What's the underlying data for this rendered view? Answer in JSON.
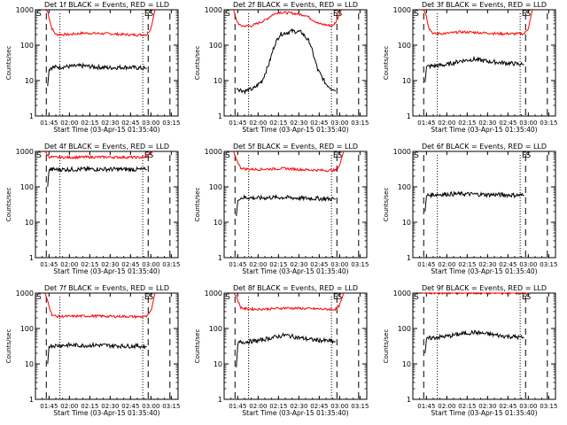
{
  "chart_data": [
    {
      "type": "line",
      "title": "Det 1f BLACK = Events, RED = LLD",
      "xlabel": "Start Time (03-Apr-15 01:35:40)",
      "ylabel": "Counts/sec",
      "log_y": true,
      "ylim": [
        1,
        1000
      ],
      "xlim": [
        "01:35",
        "03:20"
      ],
      "xticks": [
        "01:45",
        "02:00",
        "02:15",
        "02:30",
        "02:45",
        "03:00",
        "03:15"
      ],
      "yticks": [
        "1",
        "10",
        "100",
        "1000"
      ],
      "markers": [
        "E",
        "S"
      ],
      "series": [
        {
          "name": "LLD",
          "color": "#ff0000",
          "x": [
            "01:42",
            "01:44",
            "01:47",
            "01:50",
            "02:00",
            "02:10",
            "02:20",
            "02:30",
            "02:40",
            "02:50",
            "02:57",
            "03:00",
            "03:03"
          ],
          "values": [
            1000,
            900,
            300,
            200,
            200,
            220,
            215,
            210,
            200,
            195,
            200,
            300,
            1000
          ]
        },
        {
          "name": "Events",
          "color": "#000000",
          "x": [
            "01:44",
            "01:45",
            "01:46",
            "01:50",
            "02:00",
            "02:10",
            "02:20",
            "02:30",
            "02:40",
            "02:50",
            "02:57"
          ],
          "values": [
            7,
            20,
            23,
            24,
            25,
            26,
            24,
            23,
            24,
            23,
            22
          ]
        }
      ]
    },
    {
      "type": "line",
      "title": "Det 2f BLACK = Events, RED = LLD",
      "xlabel": "Start Time (03-Apr-15 01:35:40)",
      "ylabel": "Counts/sec",
      "log_y": true,
      "ylim": [
        1,
        1000
      ],
      "xlim": [
        "01:35",
        "03:20"
      ],
      "xticks": [
        "01:45",
        "02:00",
        "02:15",
        "02:30",
        "02:45",
        "03:00",
        "03:15"
      ],
      "yticks": [
        "1",
        "10",
        "100",
        "1000"
      ],
      "markers": [
        "E",
        "S"
      ],
      "series": [
        {
          "name": "LLD",
          "color": "#ff0000",
          "x": [
            "01:42",
            "01:44",
            "01:47",
            "01:55",
            "02:05",
            "02:10",
            "02:15",
            "02:25",
            "02:35",
            "02:45",
            "02:55",
            "02:58",
            "03:01"
          ],
          "values": [
            1000,
            500,
            350,
            350,
            500,
            700,
            850,
            800,
            700,
            400,
            350,
            500,
            1000
          ]
        },
        {
          "name": "Events",
          "color": "#000000",
          "x": [
            "01:44",
            "01:50",
            "01:57",
            "02:03",
            "02:08",
            "02:12",
            "02:16",
            "02:25",
            "02:32",
            "02:38",
            "02:44",
            "02:50",
            "02:57"
          ],
          "values": [
            6,
            5,
            6,
            10,
            30,
            100,
            200,
            250,
            230,
            120,
            20,
            8,
            5
          ]
        }
      ]
    },
    {
      "type": "line",
      "title": "Det 3f BLACK = Events, RED = LLD",
      "xlabel": "Start Time (03-Apr-15 01:35:40)",
      "ylabel": "Counts/sec",
      "log_y": true,
      "ylim": [
        1,
        1000
      ],
      "xlim": [
        "01:35",
        "03:20"
      ],
      "xticks": [
        "01:45",
        "02:00",
        "02:15",
        "02:30",
        "02:45",
        "03:00",
        "03:15"
      ],
      "yticks": [
        "1",
        "10",
        "100",
        "1000"
      ],
      "markers": [
        "E",
        "S"
      ],
      "series": [
        {
          "name": "LLD",
          "color": "#ff0000",
          "x": [
            "01:42",
            "01:44",
            "01:47",
            "01:50",
            "02:00",
            "02:10",
            "02:20",
            "02:30",
            "02:40",
            "02:50",
            "02:57",
            "03:00",
            "03:03"
          ],
          "values": [
            1000,
            900,
            300,
            210,
            215,
            235,
            230,
            220,
            210,
            210,
            210,
            300,
            1000
          ]
        },
        {
          "name": "Events",
          "color": "#000000",
          "x": [
            "01:44",
            "01:45",
            "01:46",
            "01:50",
            "02:00",
            "02:10",
            "02:20",
            "02:30",
            "02:40",
            "02:50",
            "02:57"
          ],
          "values": [
            9,
            24,
            25,
            26,
            28,
            36,
            40,
            35,
            32,
            30,
            28
          ]
        }
      ]
    },
    {
      "type": "line",
      "title": "Det 4f BLACK = Events, RED = LLD",
      "xlabel": "Start Time (03-Apr-15 01:35:40)",
      "ylabel": "Counts/sec",
      "log_y": true,
      "ylim": [
        1,
        1000
      ],
      "xlim": [
        "01:35",
        "03:20"
      ],
      "xticks": [
        "01:45",
        "02:00",
        "02:15",
        "02:30",
        "02:45",
        "03:00",
        "03:15"
      ],
      "yticks": [
        "1",
        "10",
        "100",
        "1000"
      ],
      "markers": [
        "E",
        "S"
      ],
      "series": [
        {
          "name": "LLD",
          "color": "#ff0000",
          "x": [
            "01:42",
            "01:43",
            "01:45",
            "01:50",
            "02:00",
            "02:15",
            "02:30",
            "02:45",
            "02:55",
            "02:58",
            "03:01"
          ],
          "values": [
            1000,
            900,
            700,
            680,
            680,
            690,
            690,
            680,
            680,
            750,
            1000
          ]
        },
        {
          "name": "Events",
          "color": "#000000",
          "x": [
            "01:44",
            "01:45",
            "01:46",
            "01:50",
            "02:00",
            "02:15",
            "02:30",
            "02:45",
            "02:57"
          ],
          "values": [
            100,
            300,
            310,
            310,
            310,
            315,
            315,
            310,
            305
          ]
        }
      ]
    },
    {
      "type": "line",
      "title": "Det 5f BLACK = Events, RED = LLD",
      "xlabel": "Start Time (03-Apr-15 01:35:40)",
      "ylabel": "Counts/sec",
      "log_y": true,
      "ylim": [
        1,
        1000
      ],
      "xlim": [
        "01:35",
        "03:20"
      ],
      "xticks": [
        "01:45",
        "02:00",
        "02:15",
        "02:30",
        "02:45",
        "03:00",
        "03:15"
      ],
      "yticks": [
        "1",
        "10",
        "100",
        "1000"
      ],
      "markers": [
        "E",
        "S"
      ],
      "series": [
        {
          "name": "LLD",
          "color": "#ff0000",
          "x": [
            "01:42",
            "01:44",
            "01:47",
            "01:50",
            "02:00",
            "02:10",
            "02:20",
            "02:30",
            "02:40",
            "02:50",
            "02:57",
            "03:00",
            "03:03"
          ],
          "values": [
            1000,
            600,
            350,
            320,
            310,
            320,
            330,
            310,
            300,
            290,
            290,
            400,
            1000
          ]
        },
        {
          "name": "Events",
          "color": "#000000",
          "x": [
            "01:44",
            "01:45",
            "01:46",
            "01:50",
            "02:00",
            "02:10",
            "02:20",
            "02:30",
            "02:40",
            "02:50",
            "02:57"
          ],
          "values": [
            15,
            40,
            48,
            50,
            48,
            50,
            50,
            48,
            47,
            46,
            45
          ]
        }
      ]
    },
    {
      "type": "line",
      "title": "Det 6f BLACK = Events, RED = LLD",
      "xlabel": "Start Time (03-Apr-15 01:35:40)",
      "ylabel": "Counts/sec",
      "log_y": true,
      "ylim": [
        1,
        1000
      ],
      "xlim": [
        "01:35",
        "03:20"
      ],
      "xticks": [
        "01:45",
        "02:00",
        "02:15",
        "02:30",
        "02:45",
        "03:00",
        "03:15"
      ],
      "yticks": [
        "1",
        "10",
        "100",
        "1000"
      ],
      "markers": [
        "E",
        "S"
      ],
      "series": [
        {
          "name": "Events",
          "color": "#000000",
          "x": [
            "01:44",
            "01:45",
            "01:46",
            "01:50",
            "02:00",
            "02:10",
            "02:20",
            "02:30",
            "02:40",
            "02:50",
            "02:57"
          ],
          "values": [
            20,
            55,
            58,
            60,
            62,
            63,
            62,
            60,
            60,
            58,
            58
          ]
        }
      ]
    },
    {
      "type": "line",
      "title": "Det 7f BLACK = Events, RED = LLD",
      "xlabel": "Start Time (03-Apr-15 01:35:40)",
      "ylabel": "Counts/sec",
      "log_y": true,
      "ylim": [
        1,
        1000
      ],
      "xlim": [
        "01:35",
        "03:20"
      ],
      "xticks": [
        "01:45",
        "02:00",
        "02:15",
        "02:30",
        "02:45",
        "03:00",
        "03:15"
      ],
      "yticks": [
        "1",
        "10",
        "100",
        "1000"
      ],
      "markers": [
        "E",
        "S"
      ],
      "series": [
        {
          "name": "LLD",
          "color": "#ff0000",
          "x": [
            "01:42",
            "01:44",
            "01:47",
            "01:50",
            "02:00",
            "02:10",
            "02:20",
            "02:30",
            "02:40",
            "02:50",
            "02:57",
            "03:00",
            "03:03"
          ],
          "values": [
            1000,
            600,
            250,
            220,
            220,
            225,
            225,
            220,
            220,
            215,
            215,
            300,
            1000
          ]
        },
        {
          "name": "Events",
          "color": "#000000",
          "x": [
            "01:44",
            "01:45",
            "01:46",
            "01:50",
            "02:00",
            "02:10",
            "02:20",
            "02:30",
            "02:40",
            "02:50",
            "02:57"
          ],
          "values": [
            10,
            32,
            33,
            33,
            34,
            33,
            34,
            33,
            32,
            32,
            31
          ]
        }
      ]
    },
    {
      "type": "line",
      "title": "Det 8f BLACK = Events, RED = LLD",
      "xlabel": "Start Time (03-Apr-15 01:35:40)",
      "ylabel": "Counts/sec",
      "log_y": true,
      "ylim": [
        1,
        1000
      ],
      "xlim": [
        "01:35",
        "03:20"
      ],
      "xticks": [
        "01:45",
        "02:00",
        "02:15",
        "02:30",
        "02:45",
        "03:00",
        "03:15"
      ],
      "yticks": [
        "1",
        "10",
        "100",
        "1000"
      ],
      "markers": [
        "E",
        "S"
      ],
      "series": [
        {
          "name": "LLD",
          "color": "#ff0000",
          "x": [
            "01:42",
            "01:44",
            "01:47",
            "01:50",
            "02:00",
            "02:10",
            "02:20",
            "02:30",
            "02:40",
            "02:50",
            "02:57",
            "03:00",
            "03:03"
          ],
          "values": [
            1000,
            800,
            400,
            360,
            350,
            360,
            380,
            370,
            360,
            350,
            350,
            450,
            1000
          ]
        },
        {
          "name": "Events",
          "color": "#000000",
          "x": [
            "01:44",
            "01:45",
            "01:46",
            "01:50",
            "02:00",
            "02:10",
            "02:20",
            "02:30",
            "02:40",
            "02:50",
            "02:57"
          ],
          "values": [
            8,
            35,
            40,
            42,
            45,
            55,
            65,
            55,
            48,
            45,
            42
          ]
        }
      ]
    },
    {
      "type": "line",
      "title": "Det 9f BLACK = Events, RED = LLD",
      "xlabel": "Start Time (03-Apr-15 01:35:40)",
      "ylabel": "Counts/sec",
      "log_y": true,
      "ylim": [
        1,
        1000
      ],
      "xlim": [
        "01:35",
        "03:20"
      ],
      "xticks": [
        "01:45",
        "02:00",
        "02:15",
        "02:30",
        "02:45",
        "03:00",
        "03:15"
      ],
      "yticks": [
        "1",
        "10",
        "100",
        "1000"
      ],
      "markers": [
        "E",
        "S"
      ],
      "series": [
        {
          "name": "LLD",
          "color": "#ff0000",
          "x": [
            "01:42",
            "01:44",
            "01:47",
            "01:50",
            "02:00",
            "02:15",
            "02:30",
            "02:45",
            "02:57",
            "03:01"
          ],
          "values": [
            1000,
            1000,
            1000,
            1000,
            1000,
            1000,
            1000,
            1000,
            1000,
            1000
          ]
        },
        {
          "name": "Events",
          "color": "#000000",
          "x": [
            "01:44",
            "01:45",
            "01:46",
            "01:50",
            "02:00",
            "02:10",
            "02:20",
            "02:30",
            "02:40",
            "02:50",
            "02:57"
          ],
          "values": [
            20,
            50,
            52,
            55,
            60,
            70,
            78,
            70,
            62,
            58,
            55
          ]
        }
      ]
    }
  ]
}
